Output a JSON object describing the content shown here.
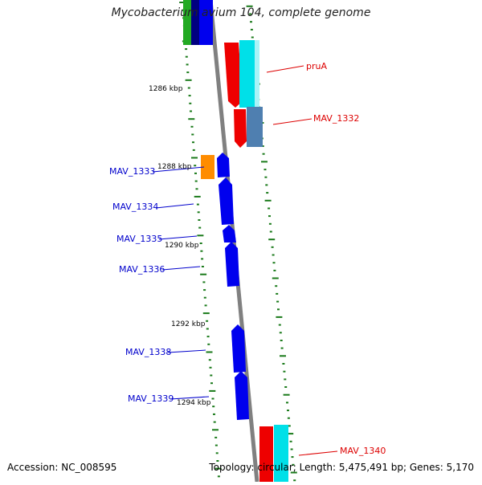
{
  "title": "Mycobacterium avium 104, complete genome",
  "footer": {
    "accession": "Accession: NC_008595",
    "summary": "Topology: circular; Length: 5,475,491 bp; Genes: 5,170"
  },
  "colors": {
    "backbone": "#808080",
    "tick": "#1a7a1a",
    "forward_label": "#0000cc",
    "reverse_label": "#dd0000",
    "blue": "#0000ee",
    "red": "#ee0000",
    "cyan": "#00e0e8",
    "steel": "#4f7fb0",
    "orange": "#ff8c00",
    "green": "#22aa22",
    "navy": "#000080"
  },
  "position_labels": [
    {
      "text": "1286 kbp"
    },
    {
      "text": "1288 kbp"
    },
    {
      "text": "1290 kbp"
    },
    {
      "text": "1292 kbp"
    },
    {
      "text": "1294 kbp"
    }
  ],
  "gene_labels": [
    {
      "text": "pruA",
      "strand": "reverse"
    },
    {
      "text": "MAV_1332",
      "strand": "reverse"
    },
    {
      "text": "MAV_1333",
      "strand": "forward"
    },
    {
      "text": "MAV_1334",
      "strand": "forward"
    },
    {
      "text": "MAV_1335",
      "strand": "forward"
    },
    {
      "text": "MAV_1336",
      "strand": "forward"
    },
    {
      "text": "MAV_1338",
      "strand": "forward"
    },
    {
      "text": "MAV_1339",
      "strand": "forward"
    },
    {
      "text": "MAV_1340",
      "strand": "reverse"
    }
  ]
}
